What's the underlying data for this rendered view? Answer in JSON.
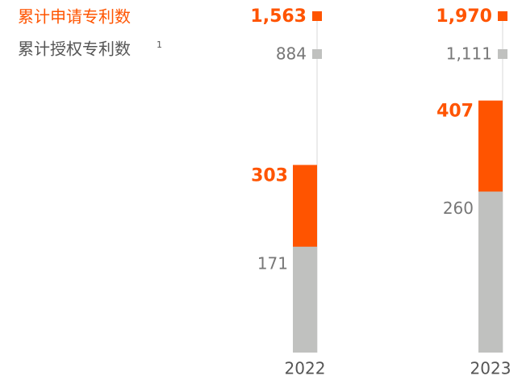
{
  "chart_data": {
    "type": "bar",
    "categories": [
      "2022",
      "2023"
    ],
    "series": [
      {
        "name": "累计申请专利数",
        "color": "#ff5400",
        "values": [
          303,
          407
        ],
        "totals": [
          1563,
          1970
        ],
        "total_labels": [
          "1,563",
          "1,970"
        ]
      },
      {
        "name": "累计授权专利数",
        "note": "1",
        "color": "#c0c1bf",
        "values": [
          171,
          260
        ],
        "totals": [
          884,
          1111
        ],
        "total_labels": [
          "884",
          "1,111"
        ]
      }
    ],
    "ylim": [
      0,
      400
    ]
  }
}
